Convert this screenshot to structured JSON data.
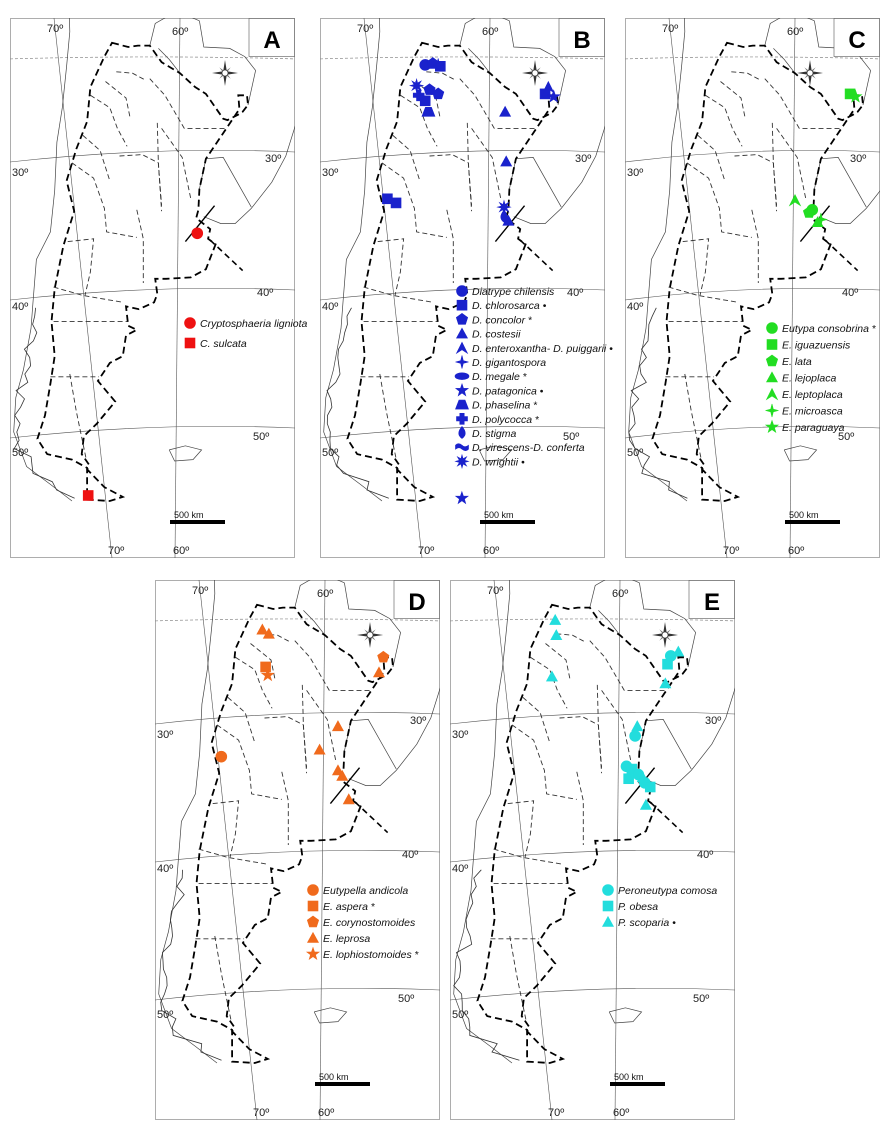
{
  "colors": {
    "A": "#ee1111",
    "B": "#1a22cc",
    "C": "#22dd22",
    "D": "#f06a1c",
    "E": "#22dddd"
  },
  "degree_labels": {
    "lon_70": "70º",
    "lon_60": "60º",
    "lat_30": "30º",
    "lat_40": "40º",
    "lat_50": "50º"
  },
  "scale_bar": "500 km",
  "panels": [
    {
      "id": "A",
      "label": "A",
      "legend": [
        {
          "name": "Cryptosphaeria ligniota",
          "symbol": "circle"
        },
        {
          "name": "C. sulcata",
          "symbol": "square"
        }
      ],
      "records": [
        {
          "species": "Cryptosphaeria ligniota",
          "symbol": "circle",
          "lon": -58.4,
          "lat": -35.6
        },
        {
          "species": "C. sulcata",
          "symbol": "square",
          "lon": -68.5,
          "lat": -54.6
        }
      ]
    },
    {
      "id": "B",
      "label": "B",
      "legend": [
        {
          "name": "Diatrype chilensis",
          "symbol": "circle"
        },
        {
          "name": "D. chlorosarca",
          "suffix": "•",
          "symbol": "square"
        },
        {
          "name": "D. concolor",
          "suffix": "*",
          "symbol": "pentagon"
        },
        {
          "name": "D. costesii",
          "symbol": "triangle"
        },
        {
          "name": "D. enteroxantha- D. puiggarii",
          "suffix": "•",
          "symbol": "halftri"
        },
        {
          "name": "D. gigantospora",
          "symbol": "star4"
        },
        {
          "name": "D. megale",
          "suffix": "*",
          "symbol": "ellipse"
        },
        {
          "name": "D. patagonica",
          "suffix": "•",
          "symbol": "star5"
        },
        {
          "name": "D. phaselina",
          "suffix": "*",
          "symbol": "trapezoid"
        },
        {
          "name": "D. polycocca",
          "suffix": "*",
          "symbol": "cross"
        },
        {
          "name": "D. stigma",
          "symbol": "drop"
        },
        {
          "name": "D. virescens-D. conferta",
          "symbol": "wave"
        },
        {
          "name": "D. wrightii",
          "suffix": "•",
          "symbol": "star8"
        }
      ],
      "records": [
        {
          "species": "Diatrype chilensis",
          "symbol": "circle",
          "lon": -66.0,
          "lat": -23.4
        },
        {
          "species": "D. chlorosarca",
          "symbol": "square",
          "lon": -64.6,
          "lat": -23.5
        },
        {
          "species": "D. concolor",
          "symbol": "pentagon",
          "lon": -65.3,
          "lat": -23.3
        },
        {
          "species": "D. gigantospora",
          "symbol": "star4",
          "lon": -64.8,
          "lat": -23.4
        },
        {
          "species": "D. polycocca",
          "symbol": "cross",
          "lon": -66.6,
          "lat": -25.6
        },
        {
          "species": "D. concolor",
          "symbol": "pentagon",
          "lon": -65.6,
          "lat": -25.2
        },
        {
          "species": "D. chlorosarca",
          "symbol": "square",
          "lon": -66.0,
          "lat": -26.0
        },
        {
          "species": "D. concolor",
          "symbol": "pentagon",
          "lon": -64.8,
          "lat": -25.5
        },
        {
          "species": "D. wrightii",
          "symbol": "star8",
          "lon": -66.8,
          "lat": -24.9
        },
        {
          "species": "D. phaselina",
          "symbol": "trapezoid",
          "lon": -65.7,
          "lat": -26.8
        },
        {
          "species": "D. chlorosarca",
          "symbol": "square",
          "lon": -69.5,
          "lat": -33.1
        },
        {
          "species": "D. chlorosarca",
          "symbol": "square",
          "lon": -68.7,
          "lat": -33.4
        },
        {
          "species": "D. costesii",
          "symbol": "triangle",
          "lon": -58.6,
          "lat": -26.8
        },
        {
          "species": "D. enteroxantha- D. puiggarii",
          "symbol": "halftri",
          "lon": -54.6,
          "lat": -25.0
        },
        {
          "species": "D. chlorosarca",
          "symbol": "square",
          "lon": -54.9,
          "lat": -25.5
        },
        {
          "species": "D. patagonica",
          "symbol": "star5",
          "lon": -54.1,
          "lat": -25.7
        },
        {
          "species": "D. costesii",
          "symbol": "triangle",
          "lon": -58.5,
          "lat": -30.4
        },
        {
          "species": "D. wrightii",
          "symbol": "star8",
          "lon": -58.7,
          "lat": -33.7
        },
        {
          "species": "D. costesii",
          "symbol": "triangle",
          "lon": -58.3,
          "lat": -34.7
        },
        {
          "species": "D. stigma",
          "symbol": "drop",
          "lon": -58.7,
          "lat": -34.4
        },
        {
          "species": "D. patagonica",
          "symbol": "star5",
          "lon": -62.6,
          "lat": -54.8
        }
      ]
    },
    {
      "id": "C",
      "label": "C",
      "legend": [
        {
          "name": "Eutypa consobrina",
          "suffix": "*",
          "symbol": "circle"
        },
        {
          "name": "E. iguazuensis",
          "symbol": "square"
        },
        {
          "name": "E. lata",
          "symbol": "pentagon"
        },
        {
          "name": "E. lejoplaca",
          "symbol": "triangle"
        },
        {
          "name": "E. leptoplaca",
          "symbol": "halftri"
        },
        {
          "name": "E. microasca",
          "symbol": "star4"
        },
        {
          "name": "E. paraguaya",
          "symbol": "star5"
        }
      ],
      "records": [
        {
          "species": "E. iguazuensis",
          "symbol": "square",
          "lon": -54.9,
          "lat": -25.5
        },
        {
          "species": "E. paraguaya",
          "symbol": "star5",
          "lon": -54.4,
          "lat": -25.7
        },
        {
          "species": "E. leptoplaca",
          "symbol": "halftri",
          "lon": -60.0,
          "lat": -33.2
        },
        {
          "species": "Eutypa consobrina",
          "symbol": "circle",
          "lon": -58.4,
          "lat": -33.9
        },
        {
          "species": "E. lata",
          "symbol": "pentagon",
          "lon": -58.7,
          "lat": -34.1
        },
        {
          "species": "E. lejoplaca",
          "symbol": "triangle",
          "lon": -57.9,
          "lat": -34.8
        },
        {
          "species": "E. microasca",
          "symbol": "star4",
          "lon": -57.6,
          "lat": -34.6
        }
      ]
    },
    {
      "id": "D",
      "label": "D",
      "legend": [
        {
          "name": "Eutypella andicola",
          "symbol": "circle"
        },
        {
          "name": "E. aspera",
          "suffix": "*",
          "symbol": "square"
        },
        {
          "name": "E. corynostomoides",
          "symbol": "pentagon"
        },
        {
          "name": "E. leprosa",
          "symbol": "triangle"
        },
        {
          "name": "E. lophiostomoides",
          "suffix": "*",
          "symbol": "star5"
        }
      ],
      "records": [
        {
          "species": "E. leprosa",
          "symbol": "triangle",
          "lon": -65.8,
          "lat": -23.6
        },
        {
          "species": "E. leprosa",
          "symbol": "triangle",
          "lon": -65.2,
          "lat": -23.9
        },
        {
          "species": "E. aspera",
          "symbol": "square",
          "lon": -65.5,
          "lat": -26.3
        },
        {
          "species": "E. lophiostomoides",
          "symbol": "star5",
          "lon": -65.3,
          "lat": -26.9
        },
        {
          "species": "E. corynostomoides",
          "symbol": "pentagon",
          "lon": -54.6,
          "lat": -25.6
        },
        {
          "species": "E. leprosa",
          "symbol": "triangle",
          "lon": -55.0,
          "lat": -26.7
        },
        {
          "species": "E. leprosa",
          "symbol": "triangle",
          "lon": -58.8,
          "lat": -30.6
        },
        {
          "species": "E. leprosa",
          "symbol": "triangle",
          "lon": -60.5,
          "lat": -32.3
        },
        {
          "species": "E. leprosa",
          "symbol": "triangle",
          "lon": -58.8,
          "lat": -33.8
        },
        {
          "species": "E. leprosa",
          "symbol": "triangle",
          "lon": -58.4,
          "lat": -34.2
        },
        {
          "species": "E. leprosa",
          "symbol": "triangle",
          "lon": -57.8,
          "lat": -35.9
        },
        {
          "species": "Eutypella andicola",
          "symbol": "circle",
          "lon": -69.6,
          "lat": -32.8
        }
      ]
    },
    {
      "id": "E",
      "label": "E",
      "legend": [
        {
          "name": "Peroneutypa comosa",
          "symbol": "circle"
        },
        {
          "name": "P. obesa",
          "symbol": "square"
        },
        {
          "name": "P. scoparia",
          "suffix": "•",
          "symbol": "triangle"
        }
      ],
      "records": [
        {
          "species": "P. scoparia",
          "symbol": "triangle",
          "lon": -66.0,
          "lat": -22.9
        },
        {
          "species": "P. scoparia",
          "symbol": "triangle",
          "lon": -65.9,
          "lat": -24.0
        },
        {
          "species": "P. scoparia",
          "symbol": "triangle",
          "lon": -66.3,
          "lat": -27.0
        },
        {
          "species": "P. scoparia",
          "symbol": "triangle",
          "lon": -54.6,
          "lat": -25.2
        },
        {
          "species": "Peroneutypa comosa",
          "symbol": "circle",
          "lon": -55.3,
          "lat": -25.5
        },
        {
          "species": "P. obesa",
          "symbol": "square",
          "lon": -55.6,
          "lat": -26.1
        },
        {
          "species": "P. scoparia",
          "symbol": "triangle",
          "lon": -55.8,
          "lat": -27.5
        },
        {
          "species": "Peroneutypa comosa",
          "symbol": "circle",
          "lon": -58.6,
          "lat": -31.3
        },
        {
          "species": "P. scoparia",
          "symbol": "triangle",
          "lon": -58.4,
          "lat": -30.6
        },
        {
          "species": "Peroneutypa comosa",
          "symbol": "circle",
          "lon": -59.4,
          "lat": -33.5
        },
        {
          "species": "P. obesa",
          "symbol": "square",
          "lon": -58.9,
          "lat": -33.7
        },
        {
          "species": "Peroneutypa comosa",
          "symbol": "circle",
          "lon": -58.3,
          "lat": -34.1
        },
        {
          "species": "P. obesa",
          "symbol": "square",
          "lon": -59.2,
          "lat": -34.4
        },
        {
          "species": "Peroneutypa comosa",
          "symbol": "circle",
          "lon": -57.7,
          "lat": -34.7
        },
        {
          "species": "P. scoparia",
          "symbol": "triangle",
          "lon": -57.9,
          "lat": -34.3
        },
        {
          "species": "P. obesa",
          "symbol": "square",
          "lon": -57.2,
          "lat": -35.0
        },
        {
          "species": "P. scoparia",
          "symbol": "triangle",
          "lon": -57.6,
          "lat": -36.3
        }
      ]
    }
  ]
}
